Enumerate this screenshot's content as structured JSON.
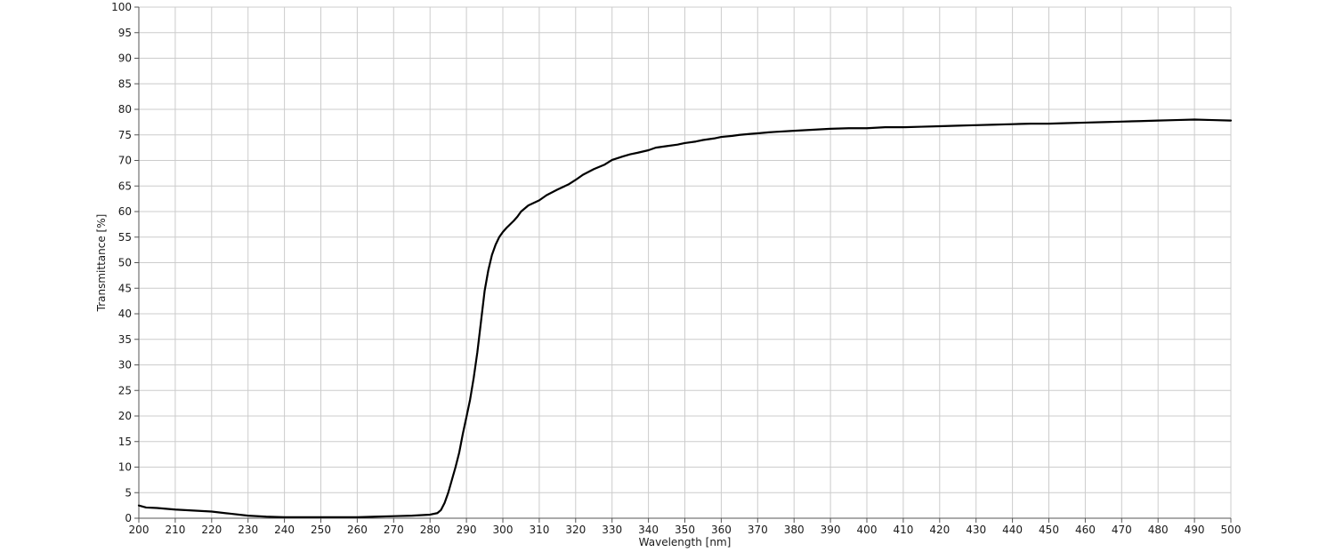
{
  "chart_data": {
    "type": "line",
    "xlabel": "Wavelength [nm]",
    "ylabel": "Transmittance [%]",
    "xlim": [
      200,
      500
    ],
    "ylim": [
      0,
      100
    ],
    "x_ticks": [
      200,
      210,
      220,
      230,
      240,
      250,
      260,
      270,
      280,
      290,
      300,
      310,
      320,
      330,
      340,
      350,
      360,
      370,
      380,
      390,
      400,
      410,
      420,
      430,
      440,
      450,
      460,
      470,
      480,
      490,
      500
    ],
    "y_ticks": [
      0,
      5,
      10,
      15,
      20,
      25,
      30,
      35,
      40,
      45,
      50,
      55,
      60,
      65,
      70,
      75,
      80,
      85,
      90,
      95,
      100
    ],
    "x_tick_labels": [
      "200",
      "210",
      "220",
      "230",
      "240",
      "250",
      "260",
      "270",
      "280",
      "290",
      "300",
      "310",
      "320",
      "330",
      "340",
      "350",
      "360",
      "370",
      "380",
      "390",
      "400",
      "410",
      "420",
      "430",
      "440",
      "450",
      "460",
      "470",
      "480",
      "490",
      "500"
    ],
    "y_tick_labels": [
      "0",
      "5",
      "10",
      "15",
      "20",
      "25",
      "30",
      "35",
      "40",
      "45",
      "50",
      "55",
      "60",
      "65",
      "70",
      "75",
      "80",
      "85",
      "90",
      "95",
      "100"
    ],
    "grid": true,
    "line_color": "#000000",
    "grid_color": "#cccccc",
    "series": [
      {
        "x": [
          200,
          202,
          205,
          210,
          215,
          220,
          225,
          230,
          235,
          240,
          245,
          250,
          255,
          260,
          265,
          270,
          275,
          280,
          282,
          283,
          284,
          285,
          286,
          287,
          288,
          289,
          290,
          291,
          292,
          293,
          294,
          295,
          296,
          297,
          298,
          299,
          300,
          301,
          302,
          303,
          304,
          305,
          307,
          310,
          312,
          315,
          318,
          320,
          322,
          325,
          328,
          330,
          333,
          335,
          337,
          340,
          342,
          345,
          348,
          350,
          353,
          355,
          358,
          360,
          363,
          365,
          368,
          370,
          373,
          375,
          380,
          385,
          390,
          395,
          400,
          405,
          410,
          415,
          420,
          425,
          430,
          435,
          440,
          445,
          450,
          455,
          460,
          465,
          470,
          475,
          480,
          485,
          490,
          495,
          500
        ],
        "y": [
          2.5,
          2.1,
          2.0,
          1.7,
          1.5,
          1.3,
          0.9,
          0.5,
          0.3,
          0.2,
          0.2,
          0.2,
          0.2,
          0.2,
          0.3,
          0.4,
          0.5,
          0.7,
          1.0,
          1.6,
          3.0,
          5.0,
          7.5,
          10.0,
          12.8,
          16.5,
          19.8,
          23.2,
          27.5,
          32.5,
          38.5,
          44.5,
          48.5,
          51.5,
          53.5,
          55.0,
          56.0,
          56.8,
          57.5,
          58.2,
          59.0,
          60.0,
          61.2,
          62.2,
          63.2,
          64.3,
          65.3,
          66.2,
          67.2,
          68.3,
          69.2,
          70.1,
          70.8,
          71.2,
          71.5,
          72.0,
          72.5,
          72.8,
          73.1,
          73.4,
          73.7,
          74.0,
          74.3,
          74.6,
          74.8,
          75.0,
          75.2,
          75.3,
          75.5,
          75.6,
          75.8,
          76.0,
          76.2,
          76.3,
          76.3,
          76.5,
          76.5,
          76.6,
          76.7,
          76.8,
          76.9,
          77.0,
          77.1,
          77.2,
          77.2,
          77.3,
          77.4,
          77.5,
          77.6,
          77.7,
          77.8,
          77.9,
          78.0,
          77.9,
          77.8
        ]
      }
    ]
  }
}
